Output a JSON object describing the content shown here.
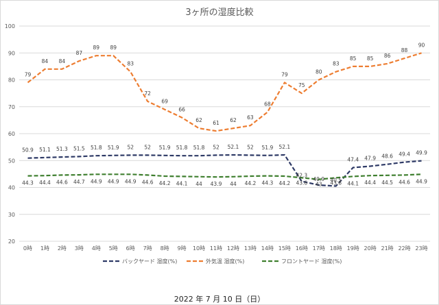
{
  "chart_data": {
    "type": "line",
    "title": "3ヶ所の湿度比較",
    "categories": [
      "0時",
      "1時",
      "2時",
      "3時",
      "4時",
      "5時",
      "6時",
      "7時",
      "8時",
      "9時",
      "10時",
      "11時",
      "12時",
      "13時",
      "14時",
      "15時",
      "16時",
      "17時",
      "18時",
      "19時",
      "20時",
      "21時",
      "22時",
      "23時"
    ],
    "ylim": [
      20,
      100
    ],
    "yticks": [
      20,
      30,
      40,
      50,
      60,
      70,
      80,
      90,
      100
    ],
    "grid": true,
    "legend_position": "bottom",
    "series": [
      {
        "name": "バックヤード 湿度(%)",
        "color": "#2e3a66",
        "values": [
          50.9,
          51.1,
          51.3,
          51.5,
          51.8,
          51.9,
          52,
          52,
          51.9,
          51.8,
          51.8,
          52,
          52.1,
          52,
          51.9,
          52.1,
          42.3,
          40.9,
          40.5,
          47.4,
          47.9,
          48.6,
          49.4,
          49.9
        ]
      },
      {
        "name": "外気温 湿度(%)",
        "color": "#ed7d31",
        "values": [
          79,
          84,
          84,
          87,
          89,
          89,
          83,
          72,
          69,
          66,
          62,
          61,
          62,
          63,
          68,
          79,
          75,
          80,
          83,
          85,
          85,
          86,
          88,
          90
        ]
      },
      {
        "name": "フロントヤード 湿度(%)",
        "color": "#3f7f2f",
        "values": [
          44.3,
          44.4,
          44.6,
          44.7,
          44.9,
          44.9,
          44.9,
          44.6,
          44.2,
          44.1,
          44,
          43.9,
          44,
          44.2,
          44.3,
          44.2,
          43.6,
          43.0,
          43.6,
          44.1,
          44.4,
          44.5,
          44.6,
          44.9
        ]
      }
    ]
  },
  "caption": "2022 年 7 月 10 日（日）"
}
